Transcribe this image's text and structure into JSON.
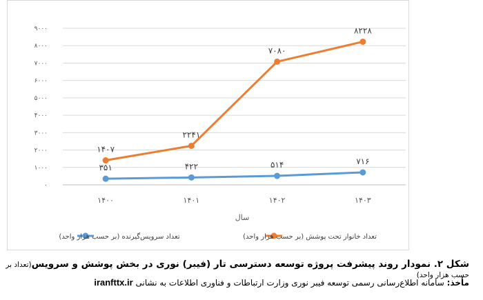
{
  "chart_data": {
    "type": "line",
    "categories": [
      "۱۴۰۰",
      "۱۴۰۱",
      "۱۴۰۲",
      "۱۴۰۳"
    ],
    "xlabel": "سال",
    "ylim": [
      0,
      9000
    ],
    "yticks": [
      0,
      1000,
      2000,
      3000,
      4000,
      5000,
      6000,
      7000,
      8000,
      9000
    ],
    "ytick_labels": [
      "۰",
      "۱۰۰۰",
      "۲۰۰۰",
      "۳۰۰۰",
      "۴۰۰۰",
      "۵۰۰۰",
      "۶۰۰۰",
      "۷۰۰۰",
      "۸۰۰۰",
      "۹۰۰۰"
    ],
    "grid": true,
    "legend_position": "bottom",
    "series": [
      {
        "name": "تعداد خانوار تحت پوشش (بر حسب هزار واحد)",
        "color": "#ED7D31",
        "values": [
          1407,
          2241,
          7080,
          8228
        ],
        "labels": [
          "۱۴۰۷",
          "۲۲۴۱",
          "۷۰۸۰",
          "۸۲۲۸"
        ]
      },
      {
        "name": "تعداد سرویس‌گیرنده (بر حسب هزار واحد)",
        "color": "#5B9BD5",
        "values": [
          351,
          422,
          514,
          716
        ],
        "labels": [
          "۳۵۱",
          "۴۲۲",
          "۵۱۴",
          "۷۱۶"
        ]
      }
    ]
  },
  "caption": {
    "title": "شکل ۲. نمودار روند پیشرفت پروژه توسعه دسترسی تار (فیبر) نوری در بخش پوشش و سرویس",
    "note": "(تعداد بر حسب هزار واحد)"
  },
  "source": {
    "label": "مأخذ:",
    "text": " سامانه اطلاع‌رسانی رسمی توسعه فیبر نوری وزارت ارتباطات و فناوری اطلاعات به نشانی ",
    "site": "iranfttx.ir"
  }
}
